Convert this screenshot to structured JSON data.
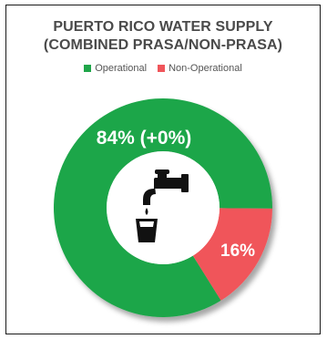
{
  "title_line1": "PUERTO RICO WATER SUPPLY",
  "title_line2": "(COMBINED PRASA/NON-PRASA)",
  "legend": [
    {
      "label": "Operational",
      "color": "#1fa64a"
    },
    {
      "label": "Non-Operational",
      "color": "#f0555a"
    }
  ],
  "chart_data": {
    "type": "pie",
    "variant": "donut",
    "series": [
      {
        "name": "Operational",
        "value": 84,
        "label": "84% (+0%)",
        "color": "#1fa64a"
      },
      {
        "name": "Non-Operational",
        "value": 16,
        "label": "16%",
        "color": "#f0555a"
      }
    ],
    "legend_position": "top",
    "center_icon": "water-faucet-icon"
  }
}
